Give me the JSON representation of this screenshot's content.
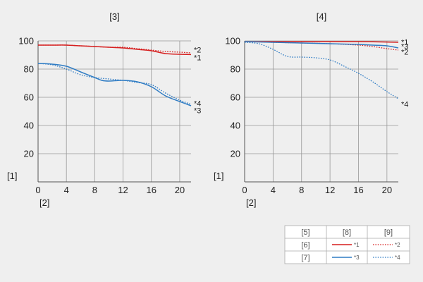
{
  "colors": {
    "red": "#d61f1f",
    "blue": "#2f7cc4",
    "grid": "#999999",
    "axis": "#555555"
  },
  "legend": {
    "header": [
      "[5]",
      "[8]",
      "[9]"
    ],
    "rows": [
      {
        "label": "[6]",
        "solid": "*1",
        "dotted": "*2",
        "color": "#d61f1f"
      },
      {
        "label": "[7]",
        "solid": "*3",
        "dotted": "*4",
        "color": "#2f7cc4"
      }
    ]
  },
  "chart_data": [
    {
      "type": "line",
      "title": "[3]",
      "ylabel": "[1]",
      "xlabel": "[2]",
      "xlim": [
        0,
        21.6
      ],
      "ylim": [
        0,
        100
      ],
      "xticks": [
        0,
        4,
        8,
        12,
        16,
        20
      ],
      "yticks": [
        20,
        40,
        60,
        80,
        100
      ],
      "series": [
        {
          "name": "*1",
          "color": "#d61f1f",
          "dash": false,
          "x": [
            0,
            2,
            4,
            6,
            8,
            10,
            12,
            14,
            16,
            18,
            20,
            21.6
          ],
          "y": [
            97,
            97,
            97,
            96.5,
            96,
            95.5,
            95,
            94,
            93,
            91,
            90.5,
            90.3
          ]
        },
        {
          "name": "*2",
          "color": "#d61f1f",
          "dash": true,
          "x": [
            0,
            2,
            4,
            6,
            8,
            10,
            12,
            14,
            16,
            18,
            20,
            21.6
          ],
          "y": [
            97,
            97,
            97,
            96.5,
            96,
            95.5,
            95.5,
            94.5,
            93.5,
            92.5,
            92,
            91.5
          ]
        },
        {
          "name": "*3",
          "color": "#2f7cc4",
          "dash": false,
          "x": [
            0,
            2,
            4,
            6,
            8,
            9,
            10,
            12,
            14,
            16,
            18,
            20,
            21.6
          ],
          "y": [
            84,
            83.5,
            82,
            78,
            74,
            72,
            71.5,
            72,
            71,
            67.5,
            61,
            57,
            54
          ]
        },
        {
          "name": "*4",
          "color": "#2f7cc4",
          "dash": true,
          "x": [
            0,
            2,
            4,
            6,
            8,
            10,
            12,
            14,
            16,
            18,
            20,
            21.6
          ],
          "y": [
            84,
            83,
            80,
            76,
            74,
            73,
            72,
            70.5,
            69,
            63,
            58,
            55
          ]
        }
      ],
      "end_labels": [
        {
          "text": "*2",
          "y": 93.5
        },
        {
          "text": "*1",
          "y": 88
        },
        {
          "text": "*4",
          "y": 55.5
        },
        {
          "text": "*3",
          "y": 50.5
        }
      ]
    },
    {
      "type": "line",
      "title": "[4]",
      "ylabel": "[1]",
      "xlabel": "[2]",
      "xlim": [
        0,
        21.6
      ],
      "ylim": [
        0,
        100
      ],
      "xticks": [
        0,
        4,
        8,
        12,
        16,
        20
      ],
      "yticks": [
        20,
        40,
        60,
        80,
        100
      ],
      "series": [
        {
          "name": "*1",
          "color": "#d61f1f",
          "dash": false,
          "x": [
            0,
            4,
            8,
            12,
            16,
            20,
            21.6
          ],
          "y": [
            99.5,
            99.5,
            99.5,
            99.5,
            99.5,
            99.2,
            99
          ]
        },
        {
          "name": "*2",
          "color": "#d61f1f",
          "dash": true,
          "x": [
            0,
            4,
            8,
            12,
            16,
            18,
            20,
            21.6
          ],
          "y": [
            99.5,
            99,
            98.5,
            98,
            97,
            96,
            94.5,
            93.5
          ]
        },
        {
          "name": "*3",
          "color": "#2f7cc4",
          "dash": false,
          "x": [
            0,
            4,
            8,
            12,
            16,
            18,
            20,
            21.6
          ],
          "y": [
            99.5,
            99,
            98.5,
            98,
            97.5,
            97,
            96.5,
            95
          ]
        },
        {
          "name": "*4",
          "color": "#2f7cc4",
          "dash": true,
          "x": [
            0,
            2,
            4,
            6,
            8,
            10,
            12,
            14,
            16,
            18,
            20,
            21.6
          ],
          "y": [
            99,
            98,
            94,
            89,
            88.5,
            88,
            86.5,
            82,
            77,
            71,
            64,
            59
          ]
        }
      ],
      "end_labels": [
        {
          "text": "*1",
          "y": 99
        },
        {
          "text": "*3",
          "y": 96
        },
        {
          "text": "*2",
          "y": 92
        },
        {
          "text": "*4",
          "y": 55
        }
      ]
    }
  ]
}
